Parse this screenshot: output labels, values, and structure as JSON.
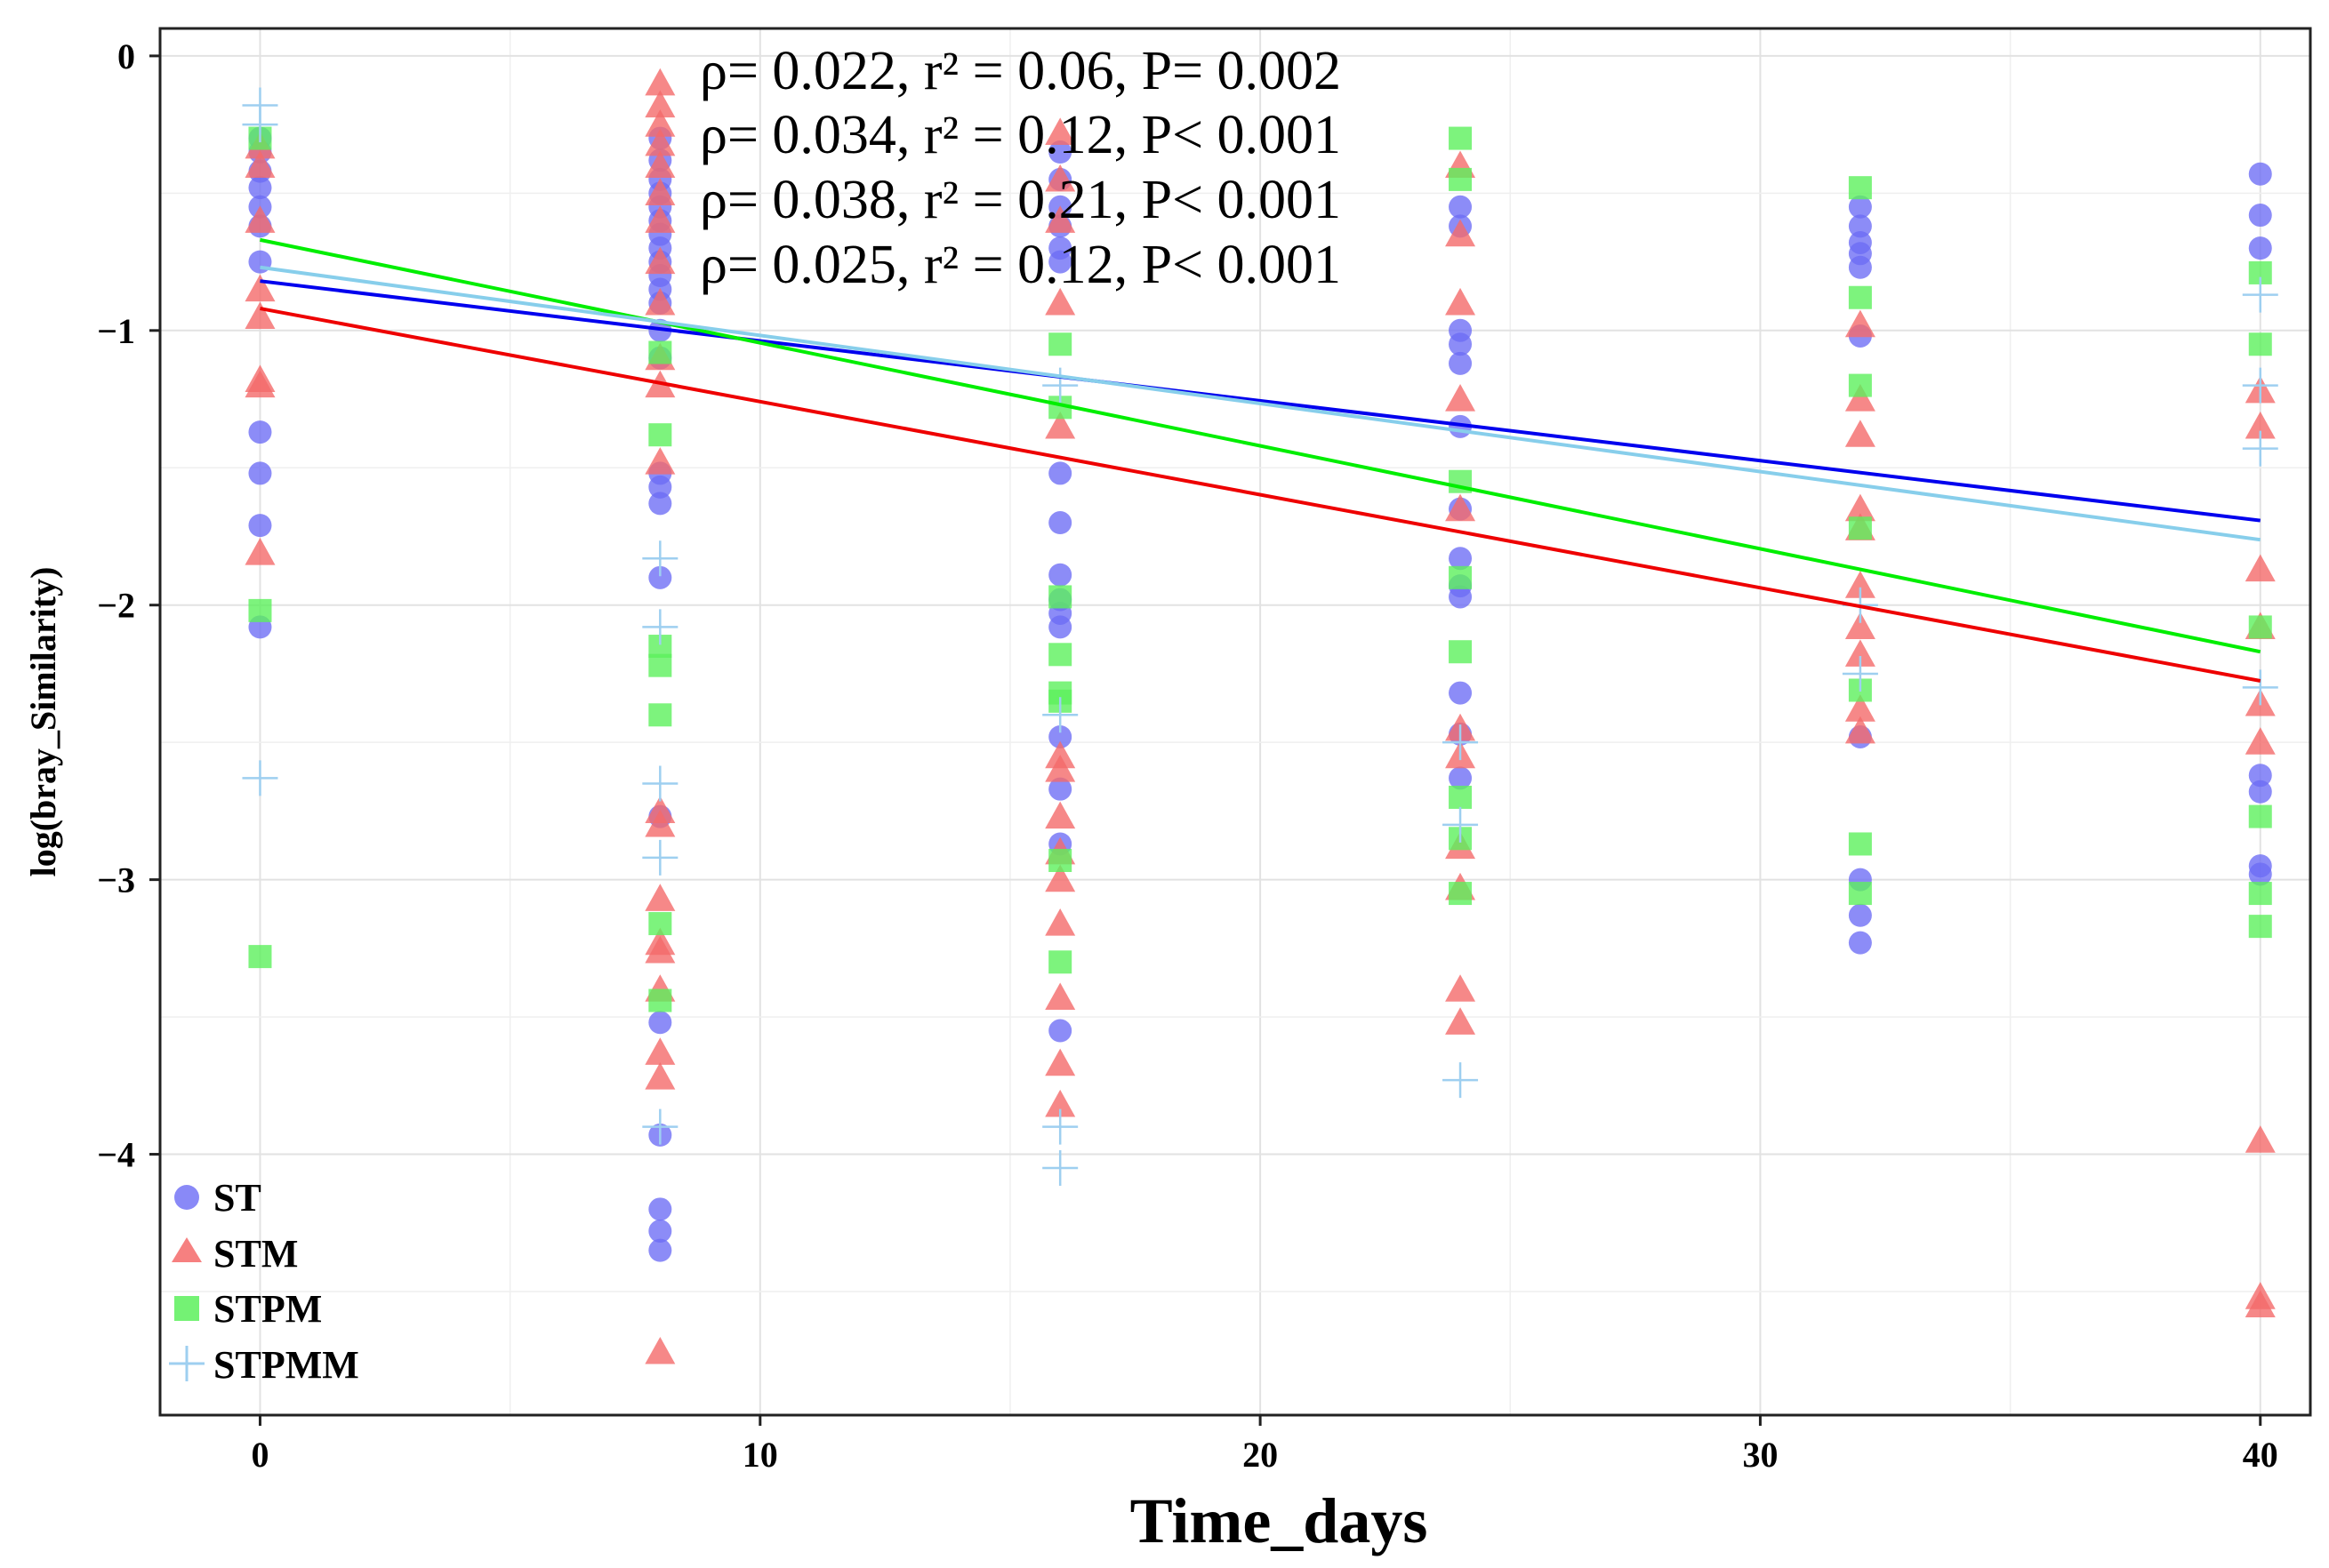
{
  "chart_data": {
    "type": "scatter",
    "xlabel": "Time_days",
    "ylabel": "log(bray_Similarity)",
    "xlim": [
      -2,
      41
    ],
    "ylim": [
      -4.95,
      0.1
    ],
    "xticks": [
      0,
      10,
      20,
      30,
      40
    ],
    "yticks": [
      0,
      -1,
      -2,
      -3,
      -4
    ],
    "grid": true,
    "legend_position": "bottom-left",
    "annotations": [
      "ρ= 0.022, r² = 0.06, P= 0.002",
      "ρ= 0.034, r² = 0.12, P< 0.001",
      "ρ= 0.038, r² = 0.21, P< 0.001",
      "ρ= 0.025, r² = 0.12, P< 0.001"
    ],
    "series": [
      {
        "name": "ST",
        "marker": "circle",
        "color": "#6B6BF5",
        "fit_color": "#0000EE",
        "fit": {
          "intercept": -0.82,
          "slope": -0.0218
        },
        "points": [
          [
            0,
            -0.3
          ],
          [
            0,
            -0.35
          ],
          [
            0,
            -0.42
          ],
          [
            0,
            -0.48
          ],
          [
            0,
            -0.55
          ],
          [
            0,
            -0.62
          ],
          [
            0,
            -0.75
          ],
          [
            0,
            -1.37
          ],
          [
            0,
            -1.52
          ],
          [
            0,
            -1.71
          ],
          [
            0,
            -2.08
          ],
          [
            8,
            -0.3
          ],
          [
            8,
            -0.38
          ],
          [
            8,
            -0.45
          ],
          [
            8,
            -0.5
          ],
          [
            8,
            -0.55
          ],
          [
            8,
            -0.6
          ],
          [
            8,
            -0.65
          ],
          [
            8,
            -0.7
          ],
          [
            8,
            -0.75
          ],
          [
            8,
            -0.8
          ],
          [
            8,
            -0.85
          ],
          [
            8,
            -0.9
          ],
          [
            8,
            -1.0
          ],
          [
            8,
            -1.1
          ],
          [
            8,
            -1.52
          ],
          [
            8,
            -1.57
          ],
          [
            8,
            -1.63
          ],
          [
            8,
            -1.9
          ],
          [
            8,
            -2.77
          ],
          [
            8,
            -3.52
          ],
          [
            8,
            -3.93
          ],
          [
            8,
            -4.2
          ],
          [
            8,
            -4.28
          ],
          [
            8,
            -4.35
          ],
          [
            16,
            -0.35
          ],
          [
            16,
            -0.45
          ],
          [
            16,
            -0.55
          ],
          [
            16,
            -0.62
          ],
          [
            16,
            -0.7
          ],
          [
            16,
            -0.75
          ],
          [
            16,
            -1.52
          ],
          [
            16,
            -1.7
          ],
          [
            16,
            -1.89
          ],
          [
            16,
            -1.98
          ],
          [
            16,
            -2.03
          ],
          [
            16,
            -2.08
          ],
          [
            16,
            -2.48
          ],
          [
            16,
            -2.67
          ],
          [
            16,
            -2.87
          ],
          [
            16,
            -3.55
          ],
          [
            24,
            -0.55
          ],
          [
            24,
            -0.62
          ],
          [
            24,
            -1.0
          ],
          [
            24,
            -1.05
          ],
          [
            24,
            -1.12
          ],
          [
            24,
            -1.35
          ],
          [
            24,
            -1.65
          ],
          [
            24,
            -1.83
          ],
          [
            24,
            -1.93
          ],
          [
            24,
            -1.97
          ],
          [
            24,
            -2.32
          ],
          [
            24,
            -2.47
          ],
          [
            24,
            -2.63
          ],
          [
            32,
            -0.55
          ],
          [
            32,
            -0.62
          ],
          [
            32,
            -0.68
          ],
          [
            32,
            -0.72
          ],
          [
            32,
            -0.77
          ],
          [
            32,
            -1.02
          ],
          [
            32,
            -2.48
          ],
          [
            32,
            -3.0
          ],
          [
            32,
            -3.13
          ],
          [
            32,
            -3.23
          ],
          [
            40,
            -0.43
          ],
          [
            40,
            -0.58
          ],
          [
            40,
            -0.7
          ],
          [
            40,
            -2.62
          ],
          [
            40,
            -2.68
          ],
          [
            40,
            -2.95
          ],
          [
            40,
            -2.98
          ]
        ]
      },
      {
        "name": "STM",
        "marker": "triangle",
        "color": "#F46A6A",
        "fit_color": "#EE0000",
        "fit": {
          "intercept": -0.92,
          "slope": -0.0339
        },
        "points": [
          [
            0,
            -0.33
          ],
          [
            0,
            -0.4
          ],
          [
            0,
            -0.6
          ],
          [
            0,
            -0.85
          ],
          [
            0,
            -0.95
          ],
          [
            0,
            -1.18
          ],
          [
            0,
            -1.2
          ],
          [
            0,
            -1.81
          ],
          [
            8,
            -0.1
          ],
          [
            8,
            -0.18
          ],
          [
            8,
            -0.25
          ],
          [
            8,
            -0.32
          ],
          [
            8,
            -0.4
          ],
          [
            8,
            -0.5
          ],
          [
            8,
            -0.6
          ],
          [
            8,
            -0.75
          ],
          [
            8,
            -0.9
          ],
          [
            8,
            -1.1
          ],
          [
            8,
            -1.2
          ],
          [
            8,
            -1.48
          ],
          [
            8,
            -2.75
          ],
          [
            8,
            -2.8
          ],
          [
            8,
            -3.07
          ],
          [
            8,
            -3.23
          ],
          [
            8,
            -3.26
          ],
          [
            8,
            -3.4
          ],
          [
            8,
            -3.63
          ],
          [
            8,
            -3.72
          ],
          [
            8,
            -4.72
          ],
          [
            16,
            -0.28
          ],
          [
            16,
            -0.45
          ],
          [
            16,
            -0.6
          ],
          [
            16,
            -0.9
          ],
          [
            16,
            -1.35
          ],
          [
            16,
            -2.55
          ],
          [
            16,
            -2.6
          ],
          [
            16,
            -2.77
          ],
          [
            16,
            -2.9
          ],
          [
            16,
            -3.0
          ],
          [
            16,
            -3.16
          ],
          [
            16,
            -3.43
          ],
          [
            16,
            -3.67
          ],
          [
            16,
            -3.82
          ],
          [
            24,
            -0.4
          ],
          [
            24,
            -0.65
          ],
          [
            24,
            -0.9
          ],
          [
            24,
            -1.25
          ],
          [
            24,
            -1.65
          ],
          [
            24,
            -2.45
          ],
          [
            24,
            -2.55
          ],
          [
            24,
            -2.88
          ],
          [
            24,
            -3.03
          ],
          [
            24,
            -3.4
          ],
          [
            24,
            -3.52
          ],
          [
            32,
            -0.98
          ],
          [
            32,
            -1.25
          ],
          [
            32,
            -1.38
          ],
          [
            32,
            -1.65
          ],
          [
            32,
            -1.72
          ],
          [
            32,
            -1.93
          ],
          [
            32,
            -2.08
          ],
          [
            32,
            -2.18
          ],
          [
            32,
            -2.38
          ],
          [
            32,
            -2.46
          ],
          [
            40,
            -1.22
          ],
          [
            40,
            -1.35
          ],
          [
            40,
            -1.87
          ],
          [
            40,
            -2.08
          ],
          [
            40,
            -2.36
          ],
          [
            40,
            -2.5
          ],
          [
            40,
            -3.95
          ],
          [
            40,
            -4.52
          ],
          [
            40,
            -4.55
          ]
        ]
      },
      {
        "name": "STPM",
        "marker": "square",
        "color": "#5CF05C",
        "fit_color": "#00EE00",
        "fit": {
          "intercept": -0.67,
          "slope": -0.0375
        },
        "points": [
          [
            0,
            -0.3
          ],
          [
            0,
            -2.02
          ],
          [
            0,
            -3.28
          ],
          [
            8,
            -1.08
          ],
          [
            8,
            -1.38
          ],
          [
            8,
            -2.15
          ],
          [
            8,
            -2.22
          ],
          [
            8,
            -2.4
          ],
          [
            8,
            -3.16
          ],
          [
            8,
            -3.44
          ],
          [
            16,
            -1.05
          ],
          [
            16,
            -1.28
          ],
          [
            16,
            -1.97
          ],
          [
            16,
            -2.18
          ],
          [
            16,
            -2.32
          ],
          [
            16,
            -2.35
          ],
          [
            16,
            -2.93
          ],
          [
            16,
            -3.3
          ],
          [
            24,
            -0.3
          ],
          [
            24,
            -0.45
          ],
          [
            24,
            -1.55
          ],
          [
            24,
            -1.9
          ],
          [
            24,
            -2.17
          ],
          [
            24,
            -2.7
          ],
          [
            24,
            -2.85
          ],
          [
            24,
            -3.05
          ],
          [
            32,
            -0.48
          ],
          [
            32,
            -0.88
          ],
          [
            32,
            -1.2
          ],
          [
            32,
            -1.72
          ],
          [
            32,
            -2.31
          ],
          [
            32,
            -2.87
          ],
          [
            32,
            -3.05
          ],
          [
            40,
            -0.79
          ],
          [
            40,
            -1.05
          ],
          [
            40,
            -2.08
          ],
          [
            40,
            -2.77
          ],
          [
            40,
            -3.05
          ],
          [
            40,
            -3.17
          ]
        ]
      },
      {
        "name": "STPMM",
        "marker": "plus",
        "color": "#9ECFF0",
        "fit_color": "#87CEEB",
        "fit": {
          "intercept": -0.77,
          "slope": -0.0248
        },
        "points": [
          [
            0,
            -0.18
          ],
          [
            0,
            -0.25
          ],
          [
            0,
            -2.63
          ],
          [
            8,
            -1.83
          ],
          [
            8,
            -2.08
          ],
          [
            8,
            -2.65
          ],
          [
            8,
            -2.92
          ],
          [
            8,
            -3.9
          ],
          [
            16,
            -1.2
          ],
          [
            16,
            -2.4
          ],
          [
            16,
            -3.9
          ],
          [
            16,
            -4.05
          ],
          [
            24,
            -2.5
          ],
          [
            24,
            -2.8
          ],
          [
            24,
            -3.73
          ],
          [
            32,
            -2.0
          ],
          [
            32,
            -2.25
          ],
          [
            40,
            -0.87
          ],
          [
            40,
            -1.2
          ],
          [
            40,
            -1.43
          ],
          [
            40,
            -2.3
          ]
        ]
      }
    ]
  }
}
